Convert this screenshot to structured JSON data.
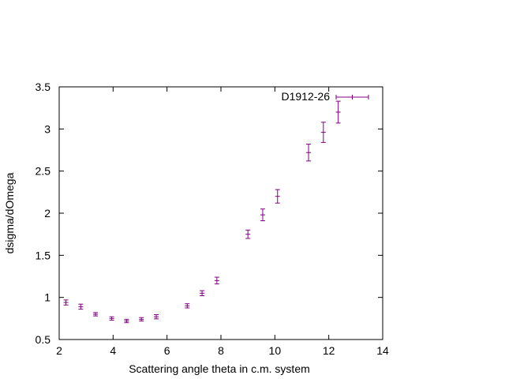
{
  "chart_data": {
    "type": "scatter",
    "title": "",
    "xlabel": "Scattering angle theta in c.m. system",
    "ylabel": "dsigma/dOmega",
    "xlim": [
      2,
      14
    ],
    "ylim": [
      0.5,
      3.5
    ],
    "xticks": [
      "2",
      "4",
      "6",
      "8",
      "10",
      "12",
      "14"
    ],
    "yticks": [
      "0.5",
      "1",
      "1.5",
      "2",
      "2.5",
      "3",
      "3.5"
    ],
    "grid": false,
    "legend_position": "top-right",
    "series": [
      {
        "name": "D1912-26",
        "color": "#800080",
        "marker": "errorbars",
        "points": [
          {
            "x": 2.25,
            "y": 0.94,
            "err": 0.03
          },
          {
            "x": 2.8,
            "y": 0.89,
            "err": 0.03
          },
          {
            "x": 3.35,
            "y": 0.8,
            "err": 0.02
          },
          {
            "x": 3.95,
            "y": 0.75,
            "err": 0.02
          },
          {
            "x": 4.5,
            "y": 0.72,
            "err": 0.02
          },
          {
            "x": 5.05,
            "y": 0.74,
            "err": 0.02
          },
          {
            "x": 5.6,
            "y": 0.77,
            "err": 0.025
          },
          {
            "x": 6.75,
            "y": 0.9,
            "err": 0.025
          },
          {
            "x": 7.3,
            "y": 1.05,
            "err": 0.03
          },
          {
            "x": 7.85,
            "y": 1.2,
            "err": 0.04
          },
          {
            "x": 9.0,
            "y": 1.75,
            "err": 0.05
          },
          {
            "x": 9.55,
            "y": 1.98,
            "err": 0.07
          },
          {
            "x": 10.1,
            "y": 2.2,
            "err": 0.08
          },
          {
            "x": 11.25,
            "y": 2.72,
            "err": 0.1
          },
          {
            "x": 11.8,
            "y": 2.96,
            "err": 0.12
          },
          {
            "x": 12.35,
            "y": 3.2,
            "err": 0.13
          }
        ]
      }
    ]
  }
}
